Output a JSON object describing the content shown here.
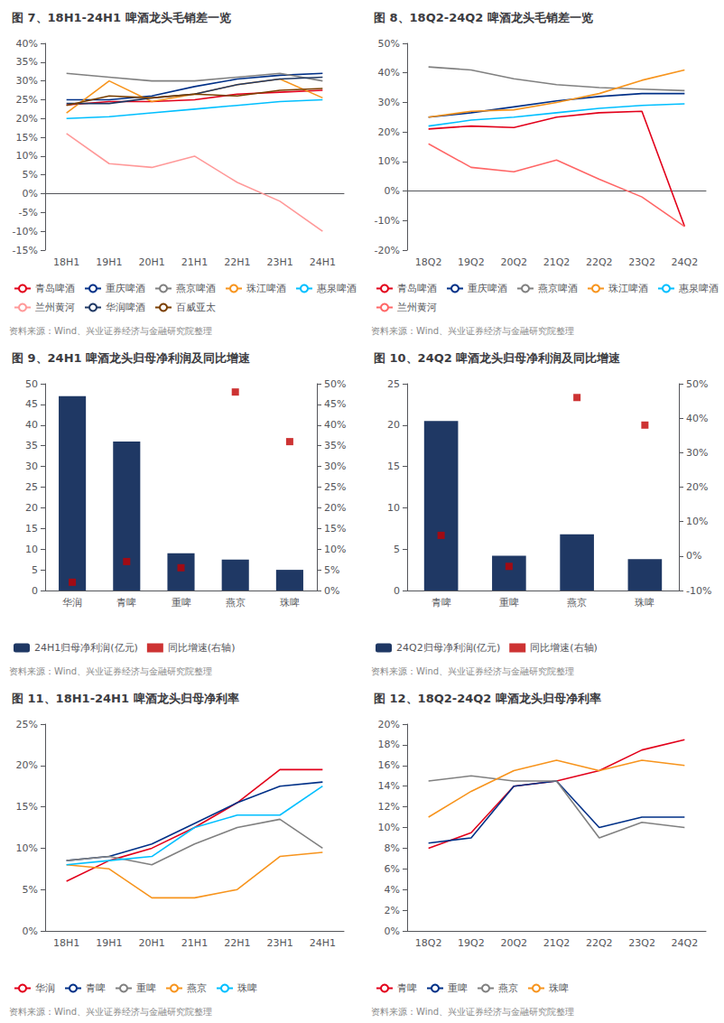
{
  "chart_data": [
    {
      "type": "line",
      "title": "图 7、18H1-24H1 啤酒龙头毛销差一览",
      "categories": [
        "18H1",
        "19H1",
        "20H1",
        "21H1",
        "22H1",
        "23H1",
        "24H1"
      ],
      "series": [
        {
          "name": "青岛啤酒",
          "color": "#e2001a",
          "values": [
            0.236,
            0.245,
            0.245,
            0.25,
            0.265,
            0.27,
            0.275
          ]
        },
        {
          "name": "重庆啤酒",
          "color": "#003087",
          "values": [
            0.25,
            0.25,
            0.26,
            0.285,
            0.305,
            0.315,
            0.32
          ]
        },
        {
          "name": "燕京啤酒",
          "color": "#808080",
          "values": [
            0.32,
            0.31,
            0.3,
            0.3,
            0.31,
            0.32,
            0.3
          ]
        },
        {
          "name": "珠江啤酒",
          "color": "#f7941d",
          "values": [
            0.215,
            0.3,
            0.245,
            0.265,
            0.29,
            0.305,
            0.255
          ]
        },
        {
          "name": "惠泉啤酒",
          "color": "#00bfff",
          "values": [
            0.2,
            0.205,
            0.215,
            0.225,
            0.235,
            0.245,
            0.25
          ]
        },
        {
          "name": "兰州黄河",
          "color": "#ff9999",
          "values": [
            0.16,
            0.08,
            0.07,
            0.1,
            0.03,
            -0.02,
            -0.1
          ]
        },
        {
          "name": "华润啤酒",
          "color": "#1f3864",
          "values": [
            0.24,
            0.24,
            0.255,
            0.265,
            0.29,
            0.305,
            0.31
          ]
        },
        {
          "name": "百威亚太",
          "color": "#7b3f00",
          "values": [
            0.235,
            0.26,
            0.255,
            0.265,
            0.26,
            0.275,
            0.28
          ]
        }
      ],
      "ylim": [
        -0.15,
        0.4
      ],
      "yticks": [
        {
          "value": -0.15,
          "label": "-15%"
        },
        {
          "value": -0.1,
          "label": "-10%"
        },
        {
          "value": -0.05,
          "label": "-5%"
        },
        {
          "value": 0.0,
          "label": "0%"
        },
        {
          "value": 0.05,
          "label": "5%"
        },
        {
          "value": 0.1,
          "label": "10%"
        },
        {
          "value": 0.15,
          "label": "15%"
        },
        {
          "value": 0.2,
          "label": "20%"
        },
        {
          "value": 0.25,
          "label": "25%"
        },
        {
          "value": 0.3,
          "label": "30%"
        },
        {
          "value": 0.35,
          "label": "35%"
        },
        {
          "value": 0.4,
          "label": "40%"
        }
      ],
      "grid": false,
      "legend": "bottom",
      "annotations": [
        "资料来源：Wind、兴业证券经济与金融研究院整理"
      ]
    },
    {
      "type": "line",
      "title": "图 8、18Q2-24Q2 啤酒龙头毛销差一览",
      "categories": [
        "18Q2",
        "19Q2",
        "20Q2",
        "21Q2",
        "22Q2",
        "23Q2",
        "24Q2"
      ],
      "series": [
        {
          "name": "青岛啤酒",
          "color": "#e2001a",
          "values": [
            0.21,
            0.22,
            0.215,
            0.25,
            0.265,
            0.27,
            -0.12
          ]
        },
        {
          "name": "重庆啤酒",
          "color": "#003087",
          "values": [
            0.25,
            0.265,
            0.285,
            0.305,
            0.32,
            0.33,
            0.33
          ]
        },
        {
          "name": "燕京啤酒",
          "color": "#808080",
          "values": [
            0.42,
            0.41,
            0.38,
            0.36,
            0.35,
            0.345,
            0.34
          ]
        },
        {
          "name": "珠江啤酒",
          "color": "#f7941d",
          "values": [
            0.25,
            0.27,
            0.275,
            0.3,
            0.33,
            0.375,
            0.41
          ]
        },
        {
          "name": "惠泉啤酒",
          "color": "#00bfff",
          "values": [
            0.22,
            0.24,
            0.25,
            0.265,
            0.28,
            0.29,
            0.295
          ]
        },
        {
          "name": "兰州黄河",
          "color": "#ff6666",
          "values": [
            0.16,
            0.08,
            0.065,
            0.105,
            0.04,
            -0.02,
            -0.12
          ]
        }
      ],
      "ylim": [
        -0.2,
        0.5
      ],
      "yticks": [
        {
          "value": -0.2,
          "label": "-20%"
        },
        {
          "value": -0.1,
          "label": "-10%"
        },
        {
          "value": 0.0,
          "label": "0%"
        },
        {
          "value": 0.1,
          "label": "10%"
        },
        {
          "value": 0.2,
          "label": "20%"
        },
        {
          "value": 0.3,
          "label": "30%"
        },
        {
          "value": 0.4,
          "label": "40%"
        },
        {
          "value": 0.5,
          "label": "50%"
        }
      ],
      "grid": false,
      "legend": "bottom",
      "annotations": [
        "资料来源：Wind、兴业证券经济与金融研究院整理"
      ]
    },
    {
      "type": "bar",
      "title": "图 9、24H1 啤酒龙头归母净利润及同比增速",
      "categories": [
        "华润",
        "青啤",
        "重啤",
        "燕京",
        "珠啤"
      ],
      "series": [
        {
          "name": "24H1归母净利润(亿元)",
          "type": "bar",
          "color": "#1f3864",
          "values": [
            47.0,
            36.0,
            9.0,
            7.5,
            5.0
          ]
        },
        {
          "name": "同比增速(右轴)",
          "type": "scatter",
          "marker": "square",
          "axis": "y2",
          "color": "#c00000",
          "values": [
            0.02,
            0.07,
            0.055,
            0.48,
            0.36
          ]
        }
      ],
      "ylim": [
        0,
        50
      ],
      "yticks": [
        0,
        5,
        10,
        15,
        20,
        25,
        30,
        35,
        40,
        45,
        50
      ],
      "y2lim": [
        0,
        0.5
      ],
      "y2ticks": [
        {
          "value": 0.0,
          "label": "0%"
        },
        {
          "value": 0.05,
          "label": "5%"
        },
        {
          "value": 0.1,
          "label": "10%"
        },
        {
          "value": 0.15,
          "label": "15%"
        },
        {
          "value": 0.2,
          "label": "20%"
        },
        {
          "value": 0.25,
          "label": "25%"
        },
        {
          "value": 0.3,
          "label": "30%"
        },
        {
          "value": 0.35,
          "label": "35%"
        },
        {
          "value": 0.4,
          "label": "40%"
        },
        {
          "value": 0.45,
          "label": "45%"
        },
        {
          "value": 0.5,
          "label": "50%"
        }
      ],
      "grid": false,
      "legend": "bottom",
      "annotations": [
        "资料来源：Wind、兴业证券经济与金融研究院整理"
      ]
    },
    {
      "type": "bar",
      "title": "图 10、24Q2 啤酒龙头归母净利润及同比增速",
      "categories": [
        "青啤",
        "重啤",
        "燕京",
        "珠啤"
      ],
      "series": [
        {
          "name": "24Q2归母净利润(亿元)",
          "type": "bar",
          "color": "#1f3864",
          "values": [
            20.5,
            4.2,
            6.8,
            3.8
          ]
        },
        {
          "name": "同比增速(右轴)",
          "type": "scatter",
          "marker": "square",
          "axis": "y2",
          "color": "#c00000",
          "values": [
            0.06,
            -0.03,
            0.46,
            0.38
          ]
        }
      ],
      "ylim": [
        0,
        25
      ],
      "yticks": [
        0,
        5,
        10,
        15,
        20,
        25
      ],
      "y2lim": [
        -0.1,
        0.5
      ],
      "y2ticks": [
        {
          "value": -0.1,
          "label": "-10%"
        },
        {
          "value": 0.0,
          "label": "0%"
        },
        {
          "value": 0.1,
          "label": "10%"
        },
        {
          "value": 0.2,
          "label": "20%"
        },
        {
          "value": 0.3,
          "label": "30%"
        },
        {
          "value": 0.4,
          "label": "40%"
        },
        {
          "value": 0.5,
          "label": "50%"
        }
      ],
      "grid": false,
      "legend": "bottom",
      "annotations": [
        "资料来源：Wind、兴业证券经济与金融研究院整理"
      ]
    },
    {
      "type": "line",
      "title": "图 11、18H1-24H1 啤酒龙头归母净利率",
      "categories": [
        "18H1",
        "19H1",
        "20H1",
        "21H1",
        "22H1",
        "23H1",
        "24H1"
      ],
      "series": [
        {
          "name": "华润",
          "color": "#e2001a",
          "values": [
            0.06,
            0.085,
            0.1,
            0.125,
            0.155,
            0.195,
            0.195
          ]
        },
        {
          "name": "青啤",
          "color": "#003087",
          "values": [
            0.085,
            0.09,
            0.105,
            0.13,
            0.155,
            0.175,
            0.18
          ]
        },
        {
          "name": "重啤",
          "color": "#808080",
          "values": [
            0.085,
            0.09,
            0.08,
            0.105,
            0.125,
            0.135,
            0.1
          ]
        },
        {
          "name": "燕京",
          "color": "#f7941d",
          "values": [
            0.08,
            0.075,
            0.04,
            0.04,
            0.05,
            0.09,
            0.095
          ]
        },
        {
          "name": "珠啤",
          "color": "#00bfff",
          "values": [
            0.08,
            0.085,
            0.09,
            0.125,
            0.14,
            0.14,
            0.175
          ]
        }
      ],
      "ylim": [
        0,
        0.25
      ],
      "yticks": [
        {
          "value": 0.0,
          "label": "0%"
        },
        {
          "value": 0.05,
          "label": "5%"
        },
        {
          "value": 0.1,
          "label": "10%"
        },
        {
          "value": 0.15,
          "label": "15%"
        },
        {
          "value": 0.2,
          "label": "20%"
        },
        {
          "value": 0.25,
          "label": "25%"
        }
      ],
      "grid": false,
      "legend": "bottom",
      "annotations": [
        "资料来源：Wind、兴业证券经济与金融研究院整理"
      ]
    },
    {
      "type": "line",
      "title": "图 12、18Q2-24Q2 啤酒龙头归母净利率",
      "categories": [
        "18Q2",
        "19Q2",
        "20Q2",
        "21Q2",
        "22Q2",
        "23Q2",
        "24Q2"
      ],
      "series": [
        {
          "name": "青啤",
          "color": "#e2001a",
          "values": [
            0.08,
            0.095,
            0.14,
            0.145,
            0.155,
            0.175,
            0.185
          ]
        },
        {
          "name": "重啤",
          "color": "#003087",
          "values": [
            0.085,
            0.09,
            0.14,
            0.145,
            0.1,
            0.11,
            0.11
          ]
        },
        {
          "name": "燕京",
          "color": "#808080",
          "values": [
            0.145,
            0.15,
            0.145,
            0.145,
            0.09,
            0.105,
            0.1
          ]
        },
        {
          "name": "珠啤",
          "color": "#f7941d",
          "values": [
            0.11,
            0.135,
            0.155,
            0.165,
            0.155,
            0.165,
            0.16
          ]
        }
      ],
      "ylim": [
        0,
        0.2
      ],
      "yticks": [
        {
          "value": 0.0,
          "label": "0%"
        },
        {
          "value": 0.02,
          "label": "2%"
        },
        {
          "value": 0.04,
          "label": "4%"
        },
        {
          "value": 0.06,
          "label": "6%"
        },
        {
          "value": 0.08,
          "label": "8%"
        },
        {
          "value": 0.1,
          "label": "10%"
        },
        {
          "value": 0.12,
          "label": "12%"
        },
        {
          "value": 0.14,
          "label": "14%"
        },
        {
          "value": 0.16,
          "label": "16%"
        },
        {
          "value": 0.18,
          "label": "18%"
        },
        {
          "value": 0.2,
          "label": "20%"
        }
      ],
      "grid": false,
      "legend": "bottom",
      "annotations": [
        "资料来源：Wind、兴业证券经济与金融研究院整理"
      ]
    }
  ]
}
